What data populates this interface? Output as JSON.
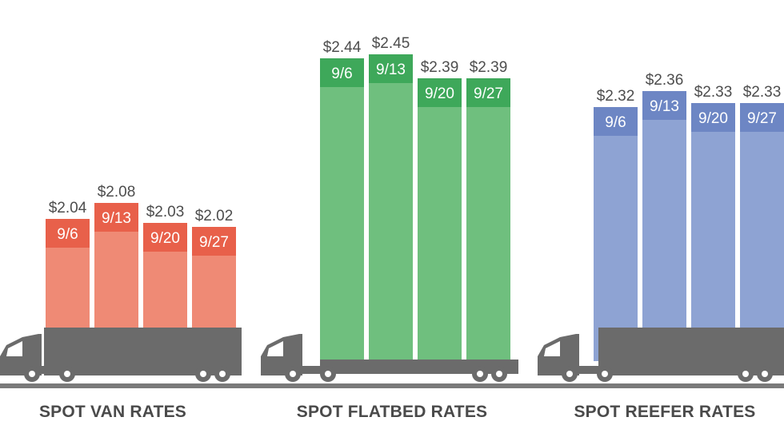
{
  "chart_data": {
    "type": "bar",
    "categories": [
      "9/6",
      "9/13",
      "9/20",
      "9/27"
    ],
    "groups": [
      {
        "title": "SPOT VAN RATES",
        "values": [
          2.04,
          2.08,
          2.03,
          2.02
        ],
        "labels": [
          "$2.04",
          "$2.08",
          "$2.03",
          "$2.02"
        ],
        "color": "#ef8a75",
        "band_color": "#e8604a"
      },
      {
        "title": "SPOT FLATBED RATES",
        "values": [
          2.44,
          2.45,
          2.39,
          2.39
        ],
        "labels": [
          "$2.44",
          "$2.45",
          "$2.39",
          "$2.39"
        ],
        "color": "#6fbf7e",
        "band_color": "#3ea85a"
      },
      {
        "title": "SPOT REEFER RATES",
        "values": [
          2.32,
          2.36,
          2.33,
          2.33
        ],
        "labels": [
          "$2.32",
          "$2.36",
          "$2.33",
          "$2.33"
        ],
        "color": "#8ea3d3",
        "band_color": "#6d86c4"
      }
    ],
    "truck_color": "#6b6b6b",
    "road_color": "#7a7a7a"
  }
}
